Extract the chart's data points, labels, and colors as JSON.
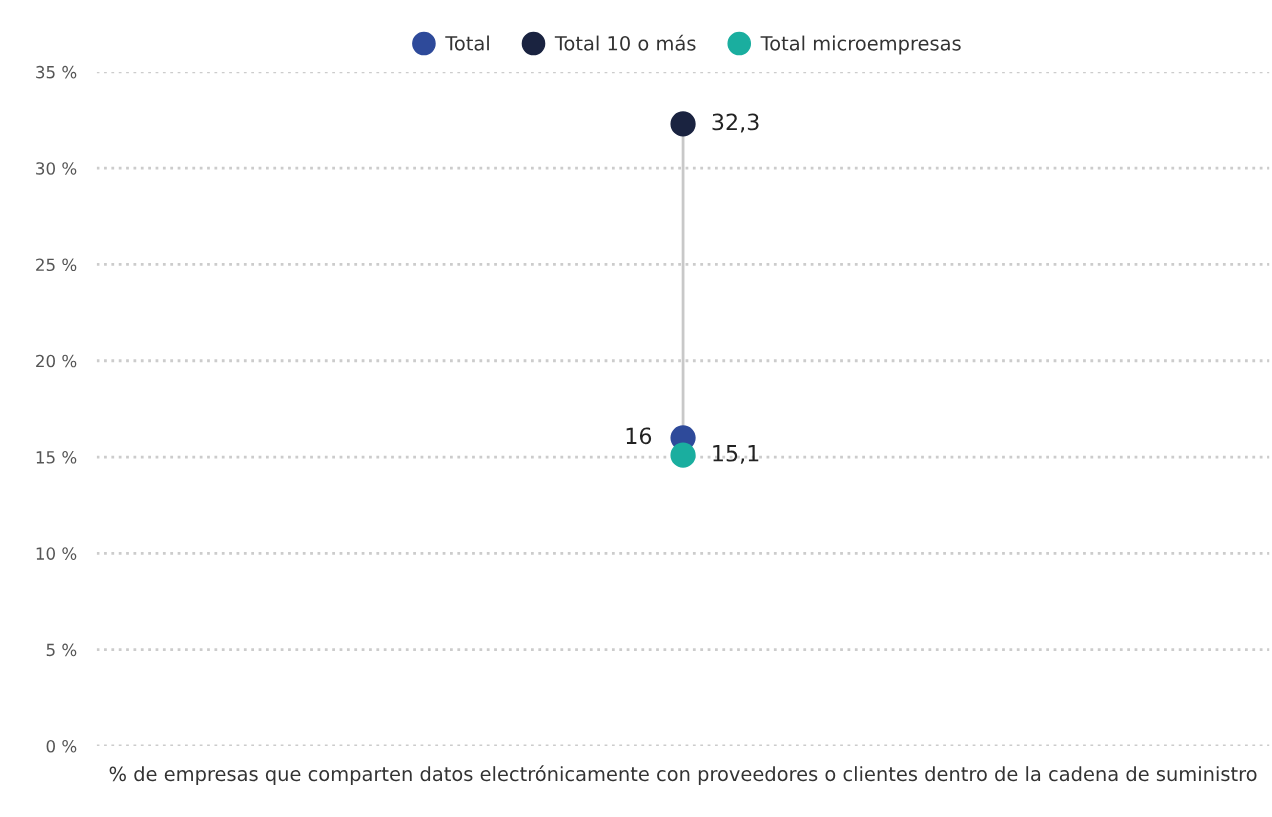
{
  "chart_data": {
    "type": "scatter",
    "categories": [
      "% de empresas que comparten datos electrónicamente con proveedores o clientes dentro de la cadena de suministro"
    ],
    "series": [
      {
        "name": "Total",
        "color": "#2e4a9a",
        "values": [
          16
        ],
        "value_labels": [
          "16"
        ]
      },
      {
        "name": "Total 10 o más",
        "color": "#1a2340",
        "values": [
          32.3
        ],
        "value_labels": [
          "32,3"
        ]
      },
      {
        "name": "Total microempresas",
        "color": "#1aae9f",
        "values": [
          15.1
        ],
        "value_labels": [
          "15,1"
        ]
      }
    ],
    "ylim": [
      0,
      35
    ],
    "yticks": [
      {
        "value": 0,
        "label": "0 %"
      },
      {
        "value": 5,
        "label": "5 %"
      },
      {
        "value": 10,
        "label": "10 %"
      },
      {
        "value": 15,
        "label": "15 %"
      },
      {
        "value": 20,
        "label": "20 %"
      },
      {
        "value": 25,
        "label": "25 %"
      },
      {
        "value": 30,
        "label": "30 %"
      },
      {
        "value": 35,
        "label": "35 %"
      }
    ],
    "grid": "y",
    "legend": "top",
    "marker": "circle",
    "line_style": "dotted"
  }
}
